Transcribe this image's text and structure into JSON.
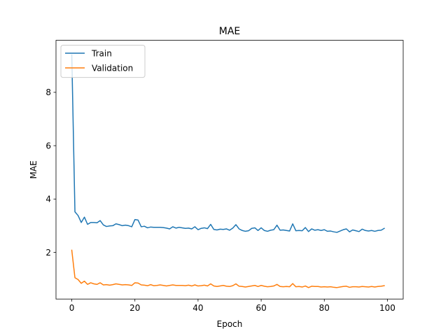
{
  "chart_data": {
    "type": "line",
    "title": "MAE",
    "xlabel": "Epoch",
    "ylabel": "MAE",
    "xlim": [
      -5,
      105
    ],
    "ylim": [
      0.25,
      9.95
    ],
    "xticks": [
      0,
      20,
      40,
      60,
      80,
      100
    ],
    "yticks": [
      2,
      4,
      6,
      8
    ],
    "grid": false,
    "legend": "top-left",
    "series": [
      {
        "name": "Train",
        "color": "#1f77b4",
        "values": [
          9.4,
          3.52,
          3.38,
          3.12,
          3.32,
          3.05,
          3.12,
          3.12,
          3.11,
          3.19,
          3.03,
          2.97,
          2.99,
          3.0,
          3.07,
          3.04,
          3.0,
          3.02,
          3.0,
          2.96,
          3.23,
          3.21,
          2.96,
          2.98,
          2.92,
          2.95,
          2.94,
          2.94,
          2.94,
          2.93,
          2.91,
          2.88,
          2.96,
          2.91,
          2.94,
          2.92,
          2.9,
          2.91,
          2.88,
          2.96,
          2.85,
          2.9,
          2.92,
          2.89,
          3.05,
          2.86,
          2.84,
          2.87,
          2.86,
          2.88,
          2.83,
          2.91,
          3.04,
          2.88,
          2.82,
          2.79,
          2.81,
          2.9,
          2.92,
          2.82,
          2.92,
          2.82,
          2.79,
          2.83,
          2.85,
          3.02,
          2.83,
          2.84,
          2.82,
          2.8,
          3.07,
          2.81,
          2.82,
          2.81,
          2.93,
          2.78,
          2.88,
          2.83,
          2.85,
          2.82,
          2.85,
          2.79,
          2.8,
          2.77,
          2.75,
          2.8,
          2.85,
          2.88,
          2.77,
          2.84,
          2.81,
          2.78,
          2.87,
          2.82,
          2.8,
          2.82,
          2.79,
          2.82,
          2.83,
          2.9
        ]
      },
      {
        "name": "Validation",
        "color": "#ff7f0e",
        "values": [
          2.08,
          1.05,
          0.98,
          0.84,
          0.92,
          0.8,
          0.86,
          0.82,
          0.8,
          0.86,
          0.78,
          0.79,
          0.77,
          0.79,
          0.82,
          0.8,
          0.78,
          0.79,
          0.78,
          0.76,
          0.86,
          0.85,
          0.78,
          0.77,
          0.75,
          0.79,
          0.75,
          0.76,
          0.78,
          0.76,
          0.74,
          0.76,
          0.78,
          0.76,
          0.76,
          0.76,
          0.75,
          0.77,
          0.74,
          0.78,
          0.74,
          0.75,
          0.77,
          0.74,
          0.82,
          0.74,
          0.72,
          0.74,
          0.76,
          0.73,
          0.72,
          0.75,
          0.82,
          0.73,
          0.72,
          0.7,
          0.72,
          0.74,
          0.76,
          0.72,
          0.76,
          0.73,
          0.71,
          0.72,
          0.74,
          0.8,
          0.72,
          0.71,
          0.72,
          0.71,
          0.83,
          0.71,
          0.72,
          0.7,
          0.74,
          0.68,
          0.73,
          0.72,
          0.72,
          0.7,
          0.71,
          0.7,
          0.71,
          0.69,
          0.68,
          0.7,
          0.72,
          0.73,
          0.69,
          0.71,
          0.71,
          0.7,
          0.72,
          0.71,
          0.7,
          0.72,
          0.7,
          0.72,
          0.73,
          0.75
        ]
      }
    ]
  }
}
